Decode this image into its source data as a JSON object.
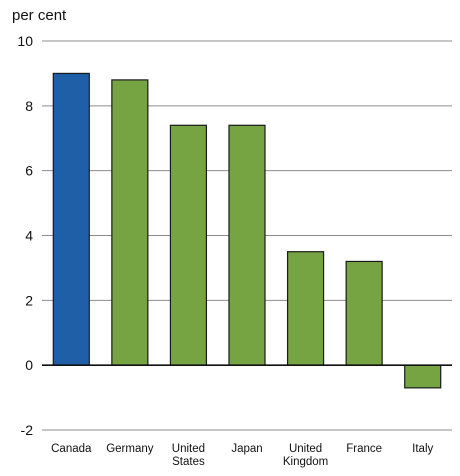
{
  "chart_data": {
    "type": "bar",
    "unit_label": "per cent",
    "categories": [
      [
        "Canada"
      ],
      [
        "Germany"
      ],
      [
        "United",
        "States"
      ],
      [
        "Japan"
      ],
      [
        "United",
        "Kingdom"
      ],
      [
        "France"
      ],
      [
        "Italy"
      ]
    ],
    "values": [
      9.0,
      8.8,
      7.4,
      7.4,
      3.5,
      3.2,
      -0.7
    ],
    "colors": [
      "#1f5fa8",
      "#76a442",
      "#76a442",
      "#76a442",
      "#76a442",
      "#76a442",
      "#76a442"
    ],
    "ylim": [
      -2,
      10
    ],
    "yticks": [
      -2,
      0,
      2,
      4,
      6,
      8,
      10
    ],
    "grid": true,
    "legend": "none"
  }
}
